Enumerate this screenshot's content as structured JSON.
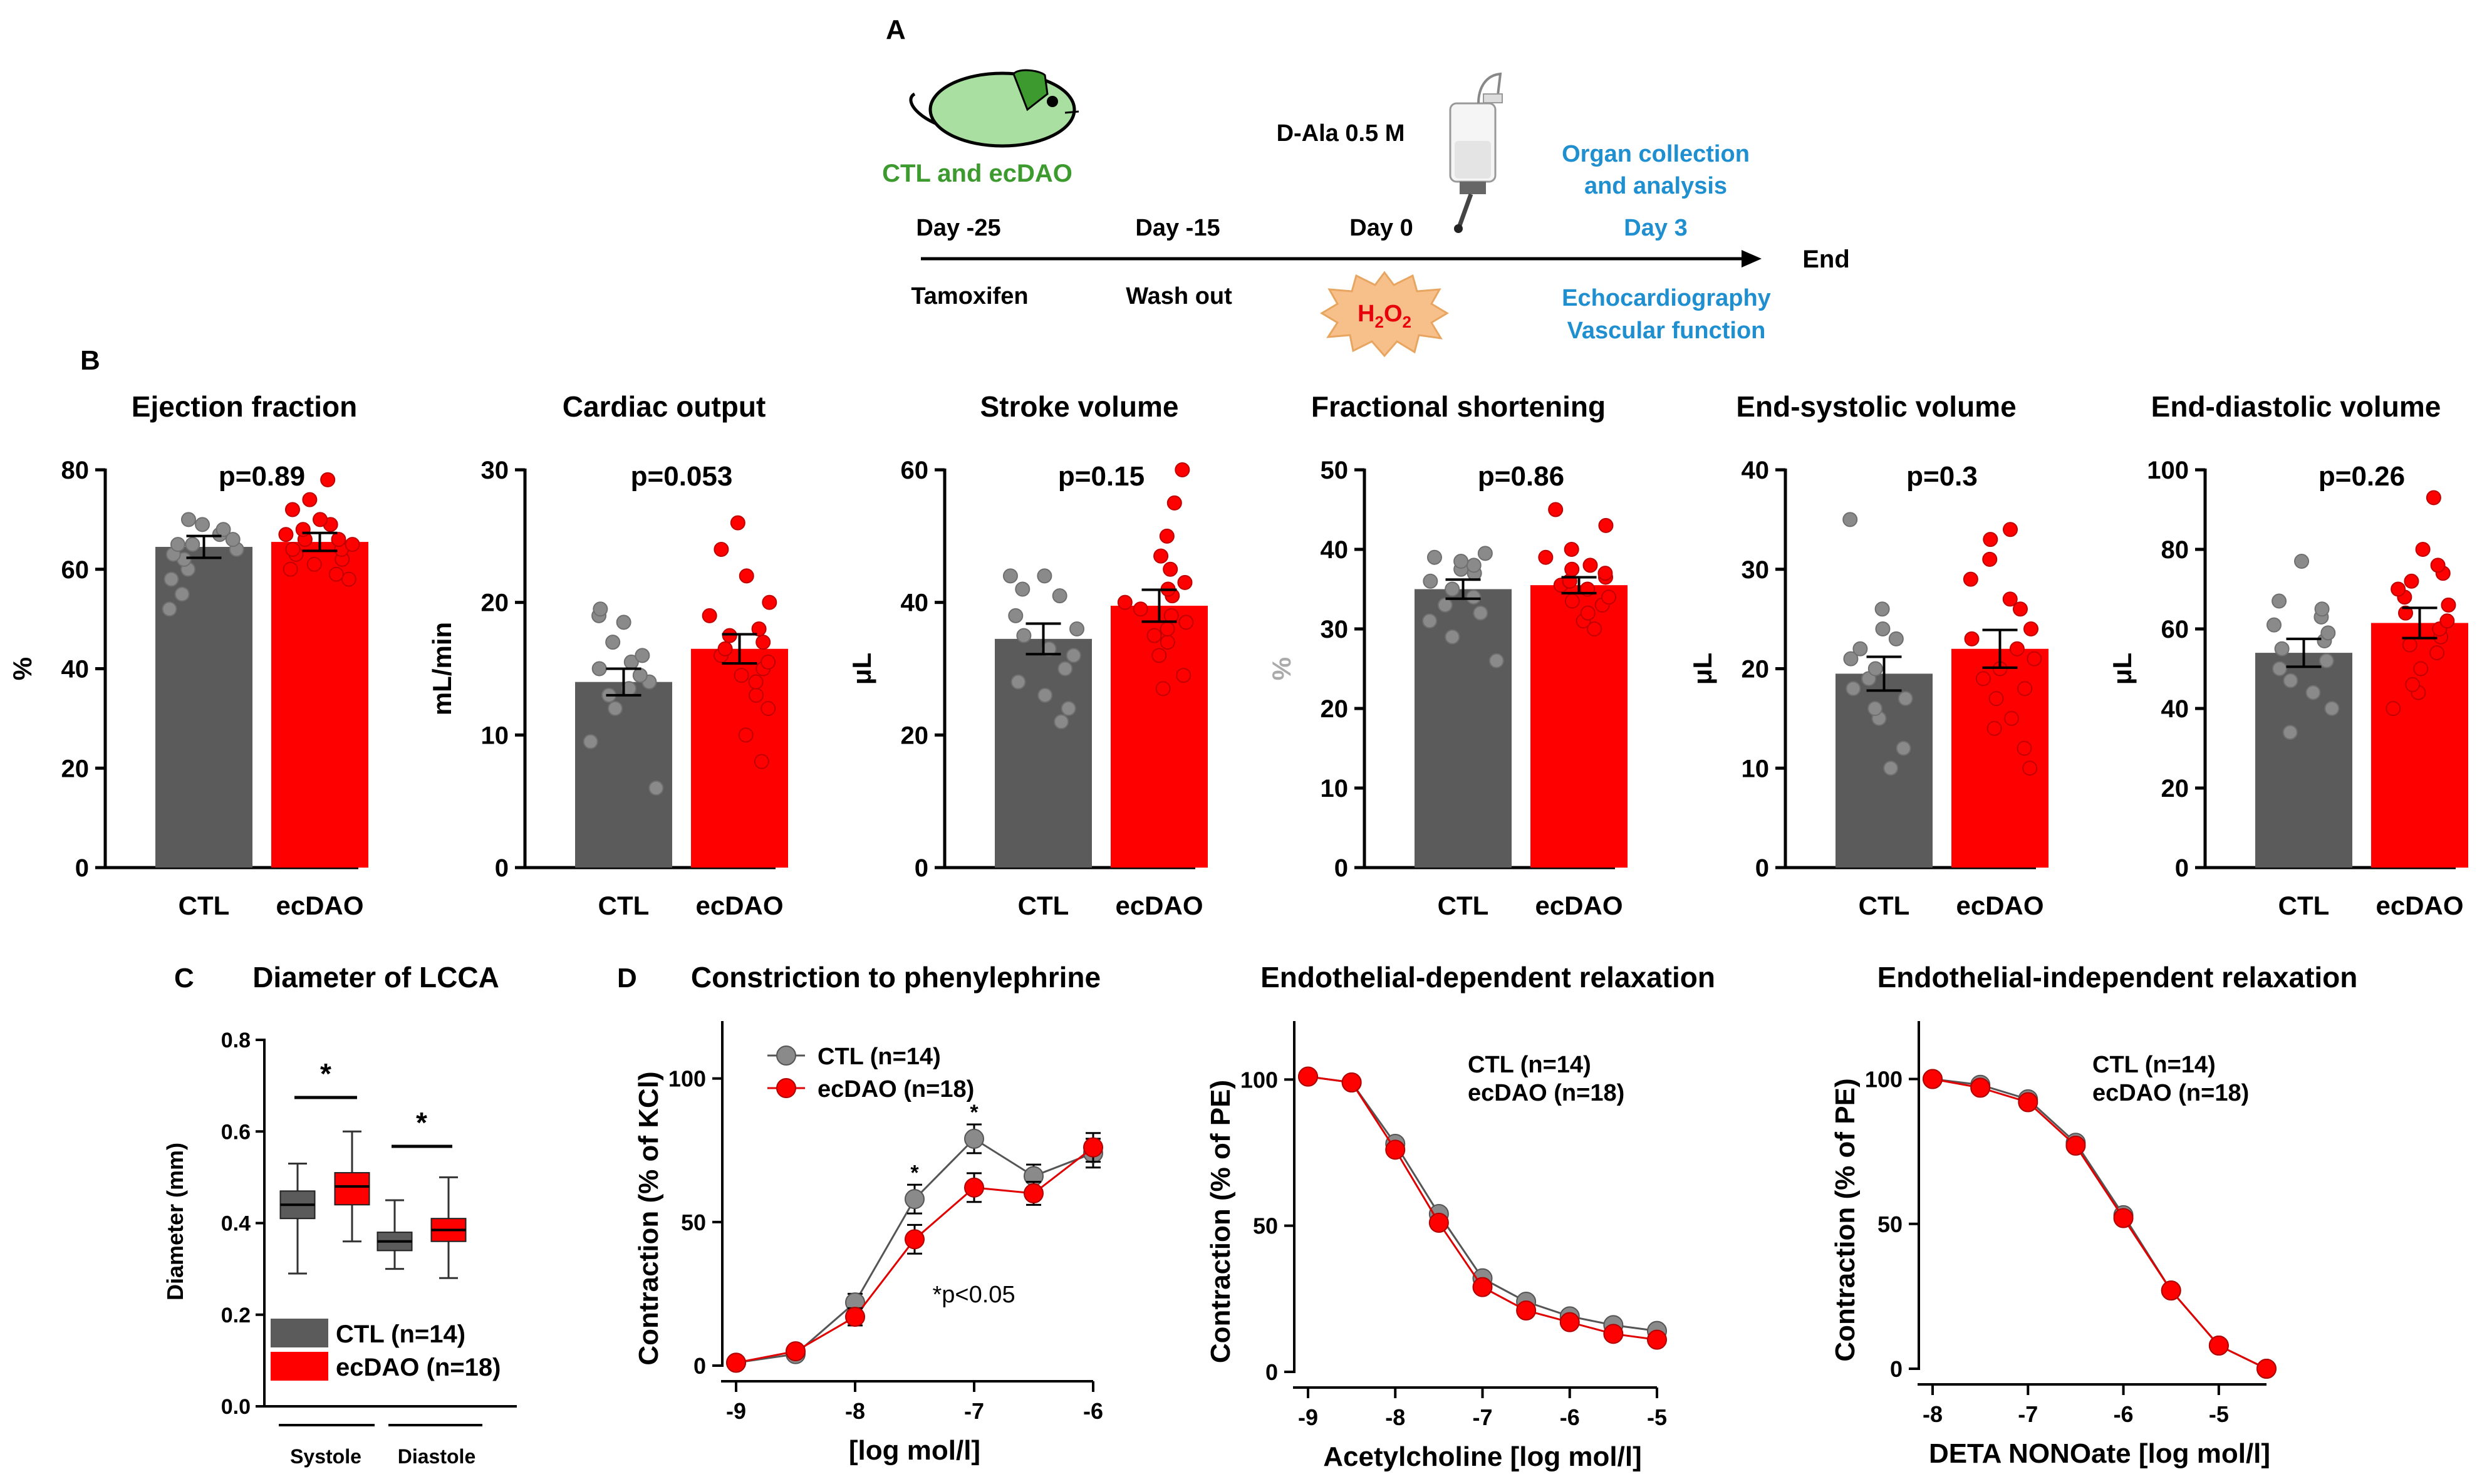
{
  "panel_labels": {
    "a": "A",
    "b": "B",
    "c": "C",
    "d": "D"
  },
  "timeline": {
    "mouse_label": "CTL and ecDAO",
    "days": [
      "Day -25",
      "Day -15",
      "Day 0"
    ],
    "day_end": "Day 3",
    "end_label": "End",
    "below": [
      "Tamoxifen",
      "Wash out"
    ],
    "h2o2_parts": {
      "h": "H",
      "sub1": "2",
      "o": "O",
      "sub2": "2"
    },
    "dala": "D-Ala 0.5 M",
    "organ_line1": "Organ collection",
    "organ_line2": "and analysis",
    "echo_line1": "Echocardiography",
    "echo_line2": "Vascular function",
    "colors": {
      "mouse": "#a9dfa0",
      "mouse_text": "#3c9a2e",
      "blue_text": "#1f8fd0",
      "burst": "#f7c08a",
      "burst_text": "#e8000b"
    }
  },
  "colors": {
    "ctl": "#5b5b5b",
    "ecdao": "#ff0000",
    "ctl_point": "#8a8a8a",
    "ecdao_point": "#ff0000"
  },
  "chart_data": [
    {
      "type": "bar",
      "title": "Ejection fraction",
      "ylabel": "%",
      "ylim": [
        0,
        80
      ],
      "yticks": [
        "0",
        "20",
        "40",
        "60",
        "80"
      ],
      "categories": [
        "CTL",
        "ecDAO"
      ],
      "values": [
        64.5,
        65.5
      ],
      "sem": [
        2.2,
        1.8
      ],
      "pvalue": "p=0.89",
      "points": [
        [
          52,
          55,
          58,
          60,
          62,
          63,
          64,
          65,
          65,
          66,
          67,
          68,
          69,
          70
        ],
        [
          58,
          59,
          60,
          61,
          62,
          63,
          64,
          64,
          65,
          66,
          66,
          67,
          68,
          69,
          70,
          72,
          74,
          78
        ]
      ]
    },
    {
      "type": "bar",
      "title": "Cardiac output",
      "ylabel": "mL/min",
      "ylim": [
        0,
        30
      ],
      "yticks": [
        "0",
        "10",
        "20",
        "30"
      ],
      "categories": [
        "CTL",
        "ecDAO"
      ],
      "values": [
        14.0,
        16.5
      ],
      "sem": [
        1.0,
        1.1
      ],
      "pvalue": "p=0.053",
      "points": [
        [
          6,
          9.5,
          12,
          13,
          13.5,
          14,
          14.5,
          15,
          15.5,
          16,
          17,
          18.5,
          19,
          19.5
        ],
        [
          8,
          10,
          12,
          13,
          14,
          14.5,
          15,
          15.5,
          16,
          16.5,
          17,
          17.5,
          18,
          19,
          20,
          22,
          24,
          26
        ]
      ]
    },
    {
      "type": "bar",
      "title": "Stroke volume",
      "ylabel": "μL",
      "ylim": [
        0,
        60
      ],
      "yticks": [
        "0",
        "20",
        "40",
        "60"
      ],
      "categories": [
        "CTL",
        "ecDAO"
      ],
      "values": [
        34.5,
        39.5
      ],
      "sem": [
        2.3,
        2.4
      ],
      "pvalue": "p=0.15",
      "points": [
        [
          22,
          24,
          26,
          28,
          30,
          32,
          33,
          35,
          36,
          38,
          41,
          42,
          44,
          44
        ],
        [
          27,
          29,
          32,
          34,
          35,
          36,
          37,
          38,
          39,
          40,
          41,
          42,
          43,
          45,
          47,
          50,
          55,
          60
        ]
      ]
    },
    {
      "type": "bar",
      "title": "Fractional shortening",
      "ylabel": "%",
      "ylim": [
        0,
        50
      ],
      "yticks": [
        "0",
        "10",
        "20",
        "30",
        "40",
        "50"
      ],
      "categories": [
        "CTL",
        "ecDAO"
      ],
      "values": [
        35.0,
        35.5
      ],
      "sem": [
        1.2,
        1.0
      ],
      "pvalue": "p=0.86",
      "points": [
        [
          26,
          29,
          31,
          32,
          33,
          34,
          35,
          36,
          37,
          37.5,
          38,
          38.5,
          39,
          39.5
        ],
        [
          30,
          31,
          32,
          33,
          33.5,
          34,
          35,
          35.5,
          36,
          36,
          36.5,
          37,
          37.5,
          38,
          39,
          40,
          43,
          45
        ]
      ]
    },
    {
      "type": "bar",
      "title": "End-systolic volume",
      "ylabel": "μL",
      "ylim": [
        0,
        40
      ],
      "yticks": [
        "0",
        "10",
        "20",
        "30",
        "40"
      ],
      "categories": [
        "CTL",
        "ecDAO"
      ],
      "values": [
        19.5,
        22.0
      ],
      "sem": [
        1.7,
        1.9
      ],
      "pvalue": "p=0.3",
      "points": [
        [
          10,
          12,
          15,
          16,
          17,
          18,
          19,
          20,
          21,
          22,
          23,
          24,
          26,
          35
        ],
        [
          10,
          12,
          14,
          15,
          17,
          18,
          19,
          20,
          21,
          22,
          23,
          24,
          26,
          27,
          29,
          31,
          33,
          34
        ]
      ]
    },
    {
      "type": "bar",
      "title": "End-diastolic volume",
      "ylabel": "μL",
      "ylim": [
        0,
        100
      ],
      "yticks": [
        "0",
        "20",
        "40",
        "60",
        "80",
        "100"
      ],
      "categories": [
        "CTL",
        "ecDAO"
      ],
      "values": [
        54.0,
        61.5
      ],
      "sem": [
        3.5,
        3.8
      ],
      "pvalue": "p=0.26",
      "points": [
        [
          34,
          40,
          44,
          47,
          50,
          52,
          55,
          57,
          59,
          61,
          63,
          65,
          67,
          77
        ],
        [
          40,
          44,
          46,
          50,
          54,
          56,
          58,
          60,
          62,
          64,
          66,
          68,
          70,
          72,
          74,
          76,
          80,
          93
        ]
      ]
    },
    {
      "type": "box",
      "title": "Diameter of LCCA",
      "ylabel": "Diameter (mm)",
      "ylim": [
        0,
        0.8
      ],
      "yticks": [
        "0.0",
        "0.2",
        "0.4",
        "0.6",
        "0.8"
      ],
      "groups": [
        "Systole",
        "Diastole"
      ],
      "legend": [
        "CTL (n=14)",
        "ecDAO (n=18)"
      ],
      "boxes": [
        {
          "group": 0,
          "series": 0,
          "min": 0.29,
          "q1": 0.41,
          "median": 0.44,
          "q3": 0.47,
          "max": 0.53
        },
        {
          "group": 0,
          "series": 1,
          "min": 0.36,
          "q1": 0.44,
          "median": 0.48,
          "q3": 0.51,
          "max": 0.6
        },
        {
          "group": 1,
          "series": 0,
          "min": 0.3,
          "q1": 0.34,
          "median": 0.36,
          "q3": 0.38,
          "max": 0.45
        },
        {
          "group": 1,
          "series": 1,
          "min": 0.28,
          "q1": 0.36,
          "median": 0.385,
          "q3": 0.41,
          "max": 0.5
        }
      ],
      "significance": [
        "*",
        "*"
      ]
    },
    {
      "type": "line",
      "title": "Constriction to phenylephrine",
      "xlabel": "[log mol/l]",
      "ylabel": "Contraction (% of KCl)",
      "xlim": [
        -9,
        -6
      ],
      "ylim": [
        0,
        120
      ],
      "xticks": [
        "-9",
        "-8",
        "-7",
        "-6"
      ],
      "yticks": [
        "0",
        "50",
        "100"
      ],
      "x": [
        -9,
        -8.5,
        -8,
        -7.5,
        -7,
        -6.5,
        -6
      ],
      "series": [
        {
          "name": "CTL (n=14)",
          "values": [
            1,
            4,
            22,
            58,
            79,
            66,
            74
          ],
          "err": [
            1,
            1.5,
            3,
            5,
            5,
            4,
            5
          ]
        },
        {
          "name": "ecDAO (n=18)",
          "values": [
            1,
            5,
            17,
            44,
            62,
            60,
            76
          ],
          "err": [
            1,
            1.5,
            3,
            5,
            5,
            4,
            5
          ]
        }
      ],
      "annotations": {
        "star": "*",
        "note": "*p<0.05",
        "starred_x": [
          -7.5,
          -7
        ]
      }
    },
    {
      "type": "line",
      "title": "Endothelial-dependent relaxation",
      "xlabel": "Acetylcholine [log mol/l]",
      "ylabel": "Contraction (% of  PE)",
      "xlim": [
        -9,
        -5
      ],
      "ylim": [
        0,
        120
      ],
      "xticks": [
        "-9",
        "-8",
        "-7",
        "-6",
        "-5"
      ],
      "yticks": [
        "0",
        "50",
        "100"
      ],
      "x": [
        -9,
        -8.5,
        -8,
        -7.5,
        -7,
        -6.5,
        -6,
        -5.5,
        -5
      ],
      "series": [
        {
          "name": "CTL (n=14)",
          "values": [
            101,
            99,
            78,
            54,
            32,
            24,
            19,
            16,
            14
          ]
        },
        {
          "name": "ecDAO (n=18)",
          "values": [
            101,
            99,
            76,
            51,
            29,
            21,
            17,
            13,
            11
          ]
        }
      ]
    },
    {
      "type": "line",
      "title": "Endothelial-independent relaxation",
      "xlabel": "DETA NONOate [log mol/l]",
      "ylabel": "Contraction (% of  PE)",
      "xlim": [
        -8,
        -4.5
      ],
      "ylim": [
        0,
        120
      ],
      "xticks": [
        "-8",
        "-7",
        "-6",
        "-5"
      ],
      "yticks": [
        "0",
        "50",
        "100"
      ],
      "x": [
        -8,
        -7.5,
        -7,
        -6.5,
        -6,
        -5.5,
        -5,
        -4.5
      ],
      "series": [
        {
          "name": "CTL (n=14)",
          "values": [
            100,
            98,
            93,
            78,
            53,
            27,
            8,
            0
          ]
        },
        {
          "name": "ecDAO (n=18)",
          "values": [
            100,
            97,
            92,
            77,
            52,
            27,
            8,
            0
          ]
        }
      ]
    }
  ]
}
